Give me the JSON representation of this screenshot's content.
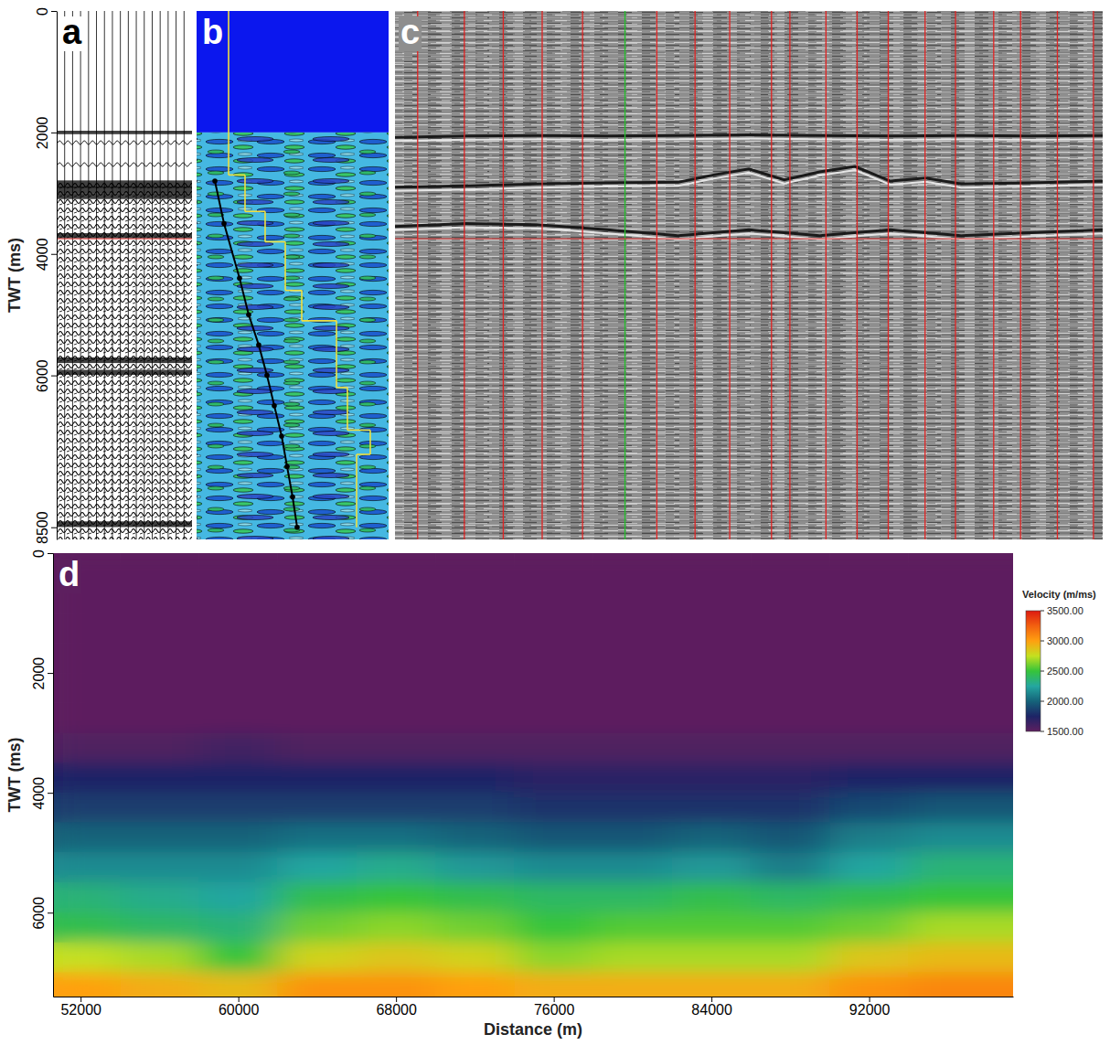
{
  "chart_data": [
    {
      "type": "seismic_gather",
      "panel_label": "a",
      "ylabel": "TWT (ms)",
      "xlim": [
        0,
        17
      ],
      "ylim": [
        0,
        8700
      ],
      "yticks": [
        0,
        2000,
        4000,
        6000,
        8500
      ],
      "tick_labels": "y",
      "traces": {
        "x": [
          1,
          2,
          3,
          4,
          5,
          6,
          7,
          8,
          9,
          10,
          11,
          12,
          13,
          14,
          15,
          16
        ],
        "color": "#000000"
      },
      "seafloor_twt": 2000,
      "onset_twt": 2800,
      "events": {
        "twt": [
          2000,
          2850,
          2950,
          3050,
          3700,
          5750,
          5950,
          8450
        ],
        "amplitude": [
          0.3,
          1,
          0.9,
          0.7,
          0.6,
          0.7,
          0.6,
          0.7
        ]
      },
      "time_marker": {
        "twt": 3750,
        "color": "#e03030"
      }
    },
    {
      "type": "velocity_spectrum",
      "panel_label": "b",
      "xlim": [
        1400,
        4400
      ],
      "ylim": [
        0,
        8700
      ],
      "tick_labels": false,
      "water_twt": 2000,
      "picks": {
        "x": [
          1686,
          1829,
          2071,
          2214,
          2371,
          2500,
          2614,
          2729,
          2814,
          2900,
          2971
        ],
        "twt": [
          2800,
          3500,
          4400,
          5000,
          5500,
          6000,
          6500,
          7000,
          7500,
          8000,
          8500
        ],
        "color": "#000000",
        "marker": "circle"
      },
      "interval_velocity": {
        "values": [
          1900,
          2157,
          2471,
          2786,
          3043,
          3586,
          3757,
          4114,
          3900
        ],
        "twt_bounds": [
          0,
          2700,
          3300,
          3800,
          4600,
          5100,
          6200,
          6900,
          7300,
          8500
        ],
        "color": "#f0e040"
      }
    },
    {
      "type": "seismic_section",
      "panel_label": "c",
      "xlim": [
        0,
        100
      ],
      "ylim": [
        0,
        8700
      ],
      "tick_labels": false,
      "lines": {
        "x": [
          3.2,
          9.8,
          15.3,
          20.8,
          26.5,
          32.5,
          37.0,
          42.4,
          47.3,
          53.2,
          55.8,
          60.9,
          65.3,
          69.7,
          74.9,
          79.2,
          84.6,
          88.4,
          93.6,
          98.7
        ],
        "colors": [
          "#e02424",
          "#e02424",
          "#e02424",
          "#e02424",
          "#e02424",
          "#22c02a",
          "#e02424",
          "#e02424",
          "#e02424",
          "#e02424",
          "#e02424",
          "#e02424",
          "#e02424",
          "#e02424",
          "#e02424",
          "#e02424",
          "#e02424",
          "#e02424",
          "#e02424",
          "#e02424"
        ]
      },
      "horizons": [
        {
          "x": [
            0,
            10,
            20,
            30,
            40,
            50,
            60,
            70,
            80,
            90,
            100
          ],
          "twt": [
            2080,
            2060,
            2050,
            2060,
            2050,
            2040,
            2050,
            2060,
            2050,
            2060,
            2050
          ]
        },
        {
          "x": [
            0,
            10,
            20,
            30,
            40,
            45,
            50,
            55,
            60,
            65,
            70,
            75,
            80,
            90,
            100
          ],
          "twt": [
            2900,
            2880,
            2850,
            2830,
            2820,
            2700,
            2600,
            2780,
            2650,
            2560,
            2800,
            2750,
            2850,
            2830,
            2800
          ]
        },
        {
          "x": [
            0,
            10,
            20,
            30,
            40,
            45,
            50,
            55,
            60,
            65,
            70,
            75,
            80,
            90,
            100
          ],
          "twt": [
            3550,
            3500,
            3520,
            3600,
            3700,
            3650,
            3600,
            3650,
            3700,
            3650,
            3600,
            3650,
            3700,
            3650,
            3600
          ]
        }
      ],
      "time_marker": {
        "twt": 3750,
        "color": "#e03030"
      }
    },
    {
      "type": "heatmap",
      "panel_label": "d",
      "xlabel": "Distance (m)",
      "ylabel": "TWT (ms)",
      "xlim": [
        50600,
        99300
      ],
      "xticks": [
        52000,
        60000,
        68000,
        76000,
        84000,
        92000
      ],
      "ylim": [
        0,
        7400
      ],
      "yticks": [
        0,
        2000,
        4000,
        6000
      ],
      "cells": {
        "x": [
          52000,
          56000,
          60000,
          64000,
          68000,
          72000,
          76000,
          80000,
          84000,
          88000,
          92000,
          96000,
          100000
        ],
        "twt": [
          250,
          750,
          1250,
          1750,
          2250,
          2750,
          3250,
          3750,
          4250,
          4750,
          5250,
          5750,
          6250,
          6750,
          7250
        ],
        "values": [
          [
            1500,
            1500,
            1500,
            1500,
            1500,
            1500,
            1550,
            1750,
            1850,
            2000,
            2150,
            2350,
            2450,
            2750,
            3000
          ],
          [
            1500,
            1500,
            1500,
            1500,
            1500,
            1500,
            1550,
            1750,
            1850,
            2000,
            2150,
            2300,
            2400,
            2700,
            2950
          ],
          [
            1500,
            1500,
            1500,
            1500,
            1500,
            1500,
            1600,
            1750,
            1850,
            2000,
            2150,
            2250,
            2350,
            2500,
            2900
          ],
          [
            1500,
            1500,
            1500,
            1500,
            1500,
            1500,
            1550,
            1750,
            1850,
            2050,
            2250,
            2450,
            2600,
            2800,
            3050
          ],
          [
            1500,
            1500,
            1500,
            1500,
            1500,
            1500,
            1550,
            1750,
            1850,
            2050,
            2300,
            2500,
            2650,
            2850,
            3050
          ],
          [
            1500,
            1500,
            1500,
            1500,
            1500,
            1500,
            1550,
            1750,
            1850,
            2000,
            2200,
            2450,
            2600,
            2800,
            3000
          ],
          [
            1500,
            1500,
            1500,
            1500,
            1500,
            1500,
            1550,
            1700,
            1800,
            1950,
            2150,
            2400,
            2500,
            2650,
            2950
          ],
          [
            1500,
            1500,
            1500,
            1500,
            1500,
            1500,
            1550,
            1700,
            1800,
            1950,
            2150,
            2400,
            2550,
            2700,
            2950
          ],
          [
            1500,
            1500,
            1500,
            1500,
            1500,
            1500,
            1550,
            1700,
            1800,
            2000,
            2200,
            2450,
            2550,
            2700,
            2950
          ],
          [
            1500,
            1500,
            1500,
            1500,
            1500,
            1500,
            1550,
            1700,
            1800,
            1950,
            2100,
            2400,
            2550,
            2700,
            2950
          ],
          [
            1500,
            1500,
            1500,
            1500,
            1500,
            1500,
            1550,
            1750,
            1900,
            2100,
            2250,
            2450,
            2600,
            2850,
            3050
          ],
          [
            1500,
            1500,
            1500,
            1500,
            1500,
            1500,
            1550,
            1750,
            1950,
            2150,
            2350,
            2500,
            2700,
            2900,
            3100
          ],
          [
            1500,
            1500,
            1500,
            1500,
            1500,
            1500,
            1550,
            1750,
            1950,
            2150,
            2350,
            2500,
            2700,
            2900,
            3100
          ]
        ]
      },
      "colorbar": {
        "title": "Velocity (m/ms)",
        "range": [
          1500,
          3500
        ],
        "ticks": [
          {
            "value": 1500,
            "label": "1500.00"
          },
          {
            "value": 2000,
            "label": "2000.00"
          },
          {
            "value": 2500,
            "label": "2500.00"
          },
          {
            "value": 3000,
            "label": "3000.00"
          },
          {
            "value": 3500,
            "label": "3500.00"
          }
        ]
      }
    }
  ]
}
